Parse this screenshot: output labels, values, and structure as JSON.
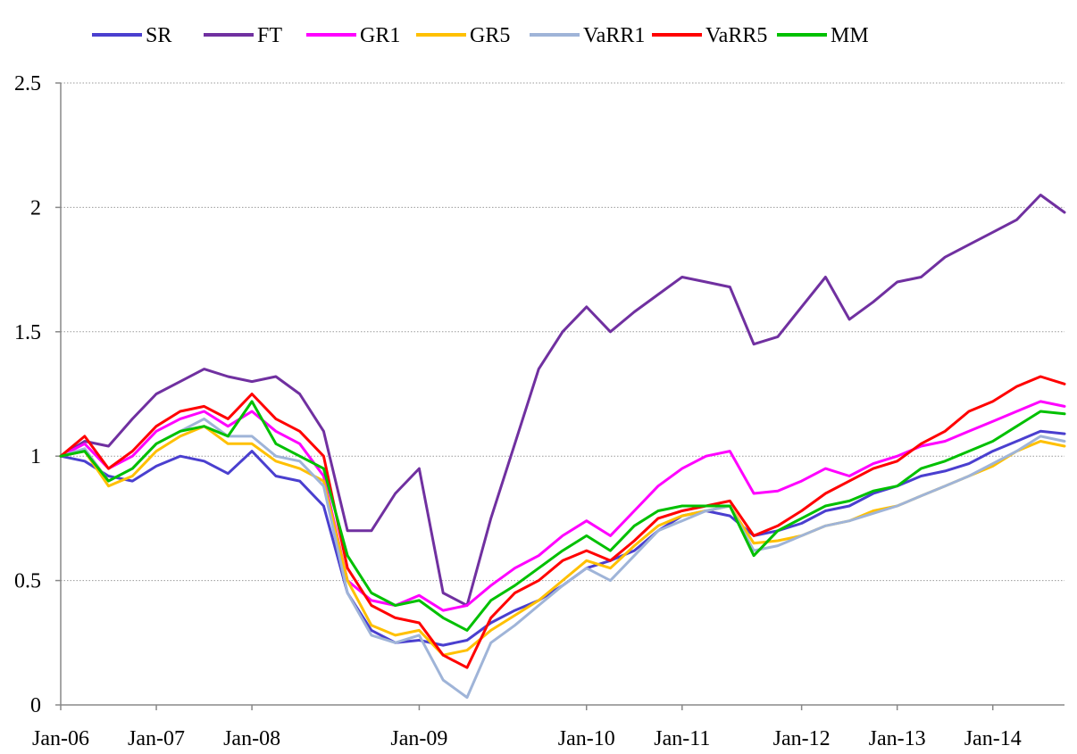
{
  "chart_data": {
    "type": "line",
    "title": "",
    "xlabel": "",
    "ylabel": "",
    "x_ticks": [
      "Jan-06",
      "Jan-07",
      "Jan-08",
      "Jan-09",
      "Jan-10",
      "Jan-11",
      "Jan-12",
      "Jan-13",
      "Jan-14"
    ],
    "y_ticks": [
      "0",
      "0.5",
      "1",
      "1.5",
      "2",
      "2.5"
    ],
    "ylim": [
      0,
      2.5
    ],
    "xlim": [
      "Jan-06",
      "Aug-14"
    ],
    "grid": "horizontal dotted",
    "legend_position": "top",
    "x": [
      "Jan-06",
      "Apr-06",
      "Jul-06",
      "Oct-06",
      "Jan-07",
      "Apr-07",
      "Jul-07",
      "Oct-07",
      "Jan-08",
      "Apr-08",
      "Jul-08",
      "Sep-08",
      "Oct-08",
      "Nov-08",
      "Dec-08",
      "Jan-09",
      "Feb-09",
      "Mar-09",
      "Apr-09",
      "May-09",
      "Jul-09",
      "Oct-09",
      "Jan-10",
      "Apr-10",
      "Jul-10",
      "Oct-10",
      "Jan-11",
      "Apr-11",
      "Jul-11",
      "Aug-11",
      "Oct-11",
      "Jan-12",
      "Apr-12",
      "Jul-12",
      "Oct-12",
      "Jan-13",
      "Apr-13",
      "Jul-13",
      "Oct-13",
      "Jan-14",
      "Apr-14",
      "Jul-14",
      "Aug-14"
    ],
    "series": [
      {
        "name": "SR",
        "color": "#4a3fcf",
        "values": [
          1.0,
          0.98,
          0.92,
          0.9,
          0.96,
          1.0,
          0.98,
          0.93,
          1.02,
          0.92,
          0.9,
          0.8,
          0.45,
          0.3,
          0.25,
          0.26,
          0.24,
          0.26,
          0.33,
          0.38,
          0.42,
          0.48,
          0.55,
          0.58,
          0.62,
          0.7,
          0.76,
          0.78,
          0.76,
          0.68,
          0.7,
          0.73,
          0.78,
          0.8,
          0.85,
          0.88,
          0.92,
          0.94,
          0.97,
          1.02,
          1.06,
          1.1,
          1.09
        ]
      },
      {
        "name": "FT",
        "color": "#7030a0",
        "values": [
          1.0,
          1.06,
          1.04,
          1.15,
          1.25,
          1.3,
          1.35,
          1.32,
          1.3,
          1.32,
          1.25,
          1.1,
          0.7,
          0.7,
          0.85,
          0.95,
          0.45,
          0.4,
          0.75,
          1.05,
          1.35,
          1.5,
          1.6,
          1.5,
          1.58,
          1.65,
          1.72,
          1.7,
          1.68,
          1.45,
          1.48,
          1.6,
          1.72,
          1.55,
          1.62,
          1.7,
          1.72,
          1.8,
          1.85,
          1.9,
          1.95,
          2.05,
          1.98
        ]
      },
      {
        "name": "GR1",
        "color": "#ff00ff",
        "values": [
          1.0,
          1.05,
          0.95,
          1.0,
          1.1,
          1.15,
          1.18,
          1.12,
          1.18,
          1.1,
          1.05,
          0.92,
          0.5,
          0.42,
          0.4,
          0.44,
          0.38,
          0.4,
          0.48,
          0.55,
          0.6,
          0.68,
          0.74,
          0.68,
          0.78,
          0.88,
          0.95,
          1.0,
          1.02,
          0.85,
          0.86,
          0.9,
          0.95,
          0.92,
          0.97,
          1.0,
          1.04,
          1.06,
          1.1,
          1.14,
          1.18,
          1.22,
          1.2
        ]
      },
      {
        "name": "GR5",
        "color": "#ffc000",
        "values": [
          1.0,
          1.02,
          0.88,
          0.92,
          1.02,
          1.08,
          1.12,
          1.05,
          1.05,
          0.98,
          0.95,
          0.9,
          0.5,
          0.32,
          0.28,
          0.3,
          0.2,
          0.22,
          0.3,
          0.36,
          0.42,
          0.5,
          0.58,
          0.55,
          0.64,
          0.72,
          0.76,
          0.78,
          0.8,
          0.65,
          0.66,
          0.68,
          0.72,
          0.74,
          0.78,
          0.8,
          0.84,
          0.88,
          0.92,
          0.96,
          1.02,
          1.06,
          1.04
        ]
      },
      {
        "name": "VaRR1",
        "color": "#9fb4d8",
        "values": [
          1.0,
          1.03,
          0.9,
          0.95,
          1.05,
          1.1,
          1.15,
          1.08,
          1.08,
          1.0,
          0.98,
          0.88,
          0.45,
          0.28,
          0.25,
          0.28,
          0.1,
          0.03,
          0.25,
          0.32,
          0.4,
          0.48,
          0.55,
          0.5,
          0.6,
          0.7,
          0.74,
          0.78,
          0.8,
          0.62,
          0.64,
          0.68,
          0.72,
          0.74,
          0.77,
          0.8,
          0.84,
          0.88,
          0.92,
          0.97,
          1.02,
          1.08,
          1.06
        ]
      },
      {
        "name": "VaRR5",
        "color": "#ff0000",
        "values": [
          1.0,
          1.08,
          0.95,
          1.02,
          1.12,
          1.18,
          1.2,
          1.15,
          1.25,
          1.15,
          1.1,
          1.0,
          0.55,
          0.4,
          0.35,
          0.33,
          0.2,
          0.15,
          0.35,
          0.45,
          0.5,
          0.58,
          0.62,
          0.58,
          0.66,
          0.75,
          0.78,
          0.8,
          0.82,
          0.68,
          0.72,
          0.78,
          0.85,
          0.9,
          0.95,
          0.98,
          1.05,
          1.1,
          1.18,
          1.22,
          1.28,
          1.32,
          1.29
        ]
      },
      {
        "name": "MM",
        "color": "#00c000",
        "values": [
          1.0,
          1.02,
          0.9,
          0.95,
          1.05,
          1.1,
          1.12,
          1.08,
          1.22,
          1.05,
          1.0,
          0.95,
          0.6,
          0.45,
          0.4,
          0.42,
          0.35,
          0.3,
          0.42,
          0.48,
          0.55,
          0.62,
          0.68,
          0.62,
          0.72,
          0.78,
          0.8,
          0.8,
          0.8,
          0.6,
          0.7,
          0.75,
          0.8,
          0.82,
          0.86,
          0.88,
          0.95,
          0.98,
          1.02,
          1.06,
          1.12,
          1.18,
          1.17
        ]
      }
    ]
  }
}
